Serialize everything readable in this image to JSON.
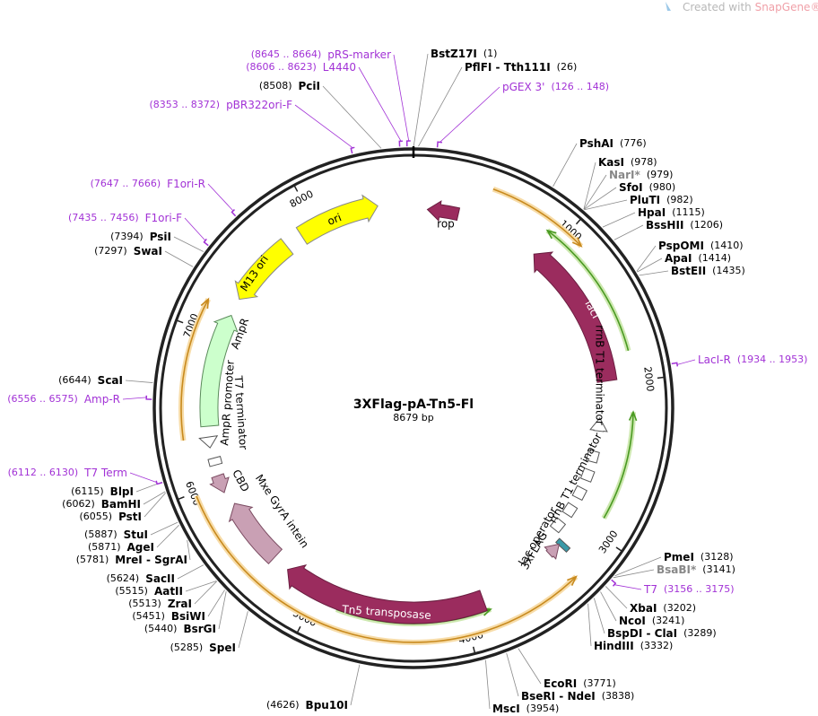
{
  "header": {
    "prefix": "Created with ",
    "brand": "SnapGene®"
  },
  "map": {
    "name": "3XFlag-pA-Tn5-Fl",
    "length": "8679 bp",
    "ticks": [
      1000,
      2000,
      3000,
      4000,
      5000,
      6000,
      7000,
      8000
    ]
  },
  "sites": [
    {
      "name": "BstZ17I",
      "pos": "(1)"
    },
    {
      "name": "PflFI - Tth111I",
      "pos": "(26)"
    },
    {
      "name": "PshAI",
      "pos": "(776)"
    },
    {
      "name": "KasI",
      "pos": "(978)"
    },
    {
      "name": "NarI*",
      "pos": "(979)",
      "color": "#888888"
    },
    {
      "name": "SfoI",
      "pos": "(980)"
    },
    {
      "name": "PluTI",
      "pos": "(982)"
    },
    {
      "name": "HpaI",
      "pos": "(1115)"
    },
    {
      "name": "BssHII",
      "pos": "(1206)"
    },
    {
      "name": "PspOMI",
      "pos": "(1410)"
    },
    {
      "name": "ApaI",
      "pos": "(1414)"
    },
    {
      "name": "BstEII",
      "pos": "(1435)"
    },
    {
      "name": "PmeI",
      "pos": "(3128)"
    },
    {
      "name": "BsaBI*",
      "pos": "(3141)",
      "color": "#888888"
    },
    {
      "name": "XbaI",
      "pos": "(3202)"
    },
    {
      "name": "NcoI",
      "pos": "(3241)"
    },
    {
      "name": "BspDI - ClaI",
      "pos": "(3289)"
    },
    {
      "name": "HindIII",
      "pos": "(3332)"
    },
    {
      "name": "EcoRI",
      "pos": "(3771)"
    },
    {
      "name": "BseRI - NdeI",
      "pos": "(3838)"
    },
    {
      "name": "MscI",
      "pos": "(3954)"
    },
    {
      "name": "Bpu10I",
      "pos": "(4626)"
    },
    {
      "name": "SpeI",
      "pos": "(5285)"
    },
    {
      "name": "BsrGI",
      "pos": "(5440)"
    },
    {
      "name": "BsiWI",
      "pos": "(5451)"
    },
    {
      "name": "ZraI",
      "pos": "(5513)"
    },
    {
      "name": "AatII",
      "pos": "(5515)"
    },
    {
      "name": "SacII",
      "pos": "(5624)"
    },
    {
      "name": "MreI - SgrAI",
      "pos": "(5781)"
    },
    {
      "name": "AgeI",
      "pos": "(5871)"
    },
    {
      "name": "StuI",
      "pos": "(5887)"
    },
    {
      "name": "PstI",
      "pos": "(6055)"
    },
    {
      "name": "BamHI",
      "pos": "(6062)"
    },
    {
      "name": "BlpI",
      "pos": "(6115)"
    },
    {
      "name": "ScaI",
      "pos": "(6644)"
    },
    {
      "name": "SwaI",
      "pos": "(7297)"
    },
    {
      "name": "PsiI",
      "pos": "(7394)"
    },
    {
      "name": "PciI",
      "pos": "(8508)"
    }
  ],
  "primers": {
    "color": "#a232d6",
    "items": [
      {
        "name": "pGEX 3'",
        "pos": "(126 .. 148)"
      },
      {
        "name": "LacI-R",
        "pos": "(1934 .. 1953)"
      },
      {
        "name": "T7",
        "pos": "(3156 .. 3175)"
      },
      {
        "name": "T7 Term",
        "pos": "(6112 .. 6130)"
      },
      {
        "name": "Amp-R",
        "pos": "(6556 .. 6575)"
      },
      {
        "name": "F1ori-F",
        "pos": "(7435 .. 7456)"
      },
      {
        "name": "F1ori-R",
        "pos": "(7647 .. 7666)"
      },
      {
        "name": "pBR322ori-F",
        "pos": "(8353 .. 8372)"
      },
      {
        "name": "L4440",
        "pos": "(8606 .. 8623)"
      },
      {
        "name": "pRS-marker",
        "pos": "(8645 .. 8664)"
      }
    ]
  },
  "features": [
    "rop",
    "lacI",
    "rrnB T1 terminator",
    "rrnB T1 terminator",
    "lac operator",
    "3xFLAG",
    "Tn5 transposase",
    "Mxe GyrA intein",
    "CBD",
    "T7 terminator",
    "AmpR promoter",
    "AmpR",
    "M13 ori",
    "ori"
  ]
}
